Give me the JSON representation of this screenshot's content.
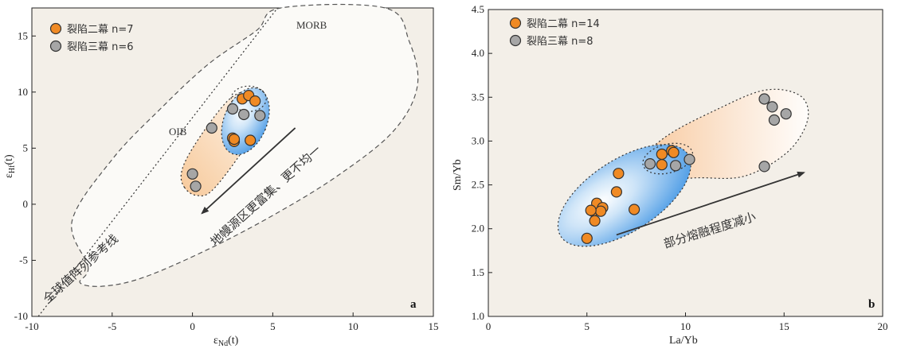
{
  "chart_data": [
    {
      "type": "scatter",
      "panel_label": "a",
      "xlabel": "ε",
      "xlabel_sub": "Nd",
      "xlabel_suffix": "(t)",
      "ylabel": "ε",
      "ylabel_sub": "Hf",
      "ylabel_suffix": "(t)",
      "xlim": [
        -10,
        15
      ],
      "ylim": [
        -10,
        17.5
      ],
      "xticks": [
        "-10",
        "-5",
        "0",
        "5",
        "10",
        "15"
      ],
      "yticks": [
        "-10",
        "-5",
        "0",
        "5",
        "10",
        "15"
      ],
      "legend_position": "top-left",
      "series": [
        {
          "name": "裂陷二幕  n=7",
          "color": "#F08A24",
          "points": [
            [
              3.1,
              9.4
            ],
            [
              3.5,
              9.7
            ],
            [
              3.9,
              9.2
            ],
            [
              2.5,
              5.9
            ],
            [
              2.6,
              5.6
            ],
            [
              3.6,
              5.7
            ],
            [
              2.6,
              5.8
            ]
          ]
        },
        {
          "name": "裂陷三幕  n=6",
          "color": "#A6A6A6",
          "points": [
            [
              2.5,
              8.5
            ],
            [
              3.2,
              8.0
            ],
            [
              4.2,
              7.9
            ],
            [
              1.2,
              6.8
            ],
            [
              0.0,
              2.7
            ],
            [
              0.2,
              1.6
            ]
          ]
        }
      ],
      "annotations": {
        "morb": "MORB",
        "oib": "OIB",
        "reference_line": "全球值阵列参考线",
        "arrow_text": "地幔源区更富集、更不均一"
      }
    },
    {
      "type": "scatter",
      "panel_label": "b",
      "xlabel": "La/Yb",
      "ylabel": "Sm/Yb",
      "xlim": [
        0,
        20
      ],
      "ylim": [
        1.0,
        4.5
      ],
      "xticks": [
        "0",
        "5",
        "10",
        "15",
        "20"
      ],
      "yticks": [
        "1.0",
        "1.5",
        "2.0",
        "2.5",
        "3.0",
        "3.5",
        "4.0",
        "4.5"
      ],
      "legend_position": "top-left",
      "series": [
        {
          "name": "裂陷二幕  n=14",
          "color": "#F08A24",
          "points": [
            [
              5.0,
              1.89
            ],
            [
              5.3,
              2.2
            ],
            [
              5.4,
              2.09
            ],
            [
              5.5,
              2.29
            ],
            [
              5.8,
              2.24
            ],
            [
              5.7,
              2.2
            ],
            [
              6.5,
              2.42
            ],
            [
              6.6,
              2.63
            ],
            [
              7.4,
              2.22
            ],
            [
              8.8,
              2.85
            ],
            [
              8.8,
              2.73
            ],
            [
              9.3,
              2.89
            ],
            [
              9.4,
              2.87
            ],
            [
              5.2,
              2.21
            ]
          ]
        },
        {
          "name": "裂陷三幕  n=8",
          "color": "#A6A6A6",
          "points": [
            [
              8.2,
              2.74
            ],
            [
              9.5,
              2.72
            ],
            [
              10.2,
              2.79
            ],
            [
              14.0,
              3.48
            ],
            [
              14.4,
              3.39
            ],
            [
              14.5,
              3.24
            ],
            [
              15.1,
              3.31
            ],
            [
              14.0,
              2.71
            ]
          ]
        }
      ],
      "annotations": {
        "arrow_text": "部分熔融程度减小"
      }
    }
  ]
}
